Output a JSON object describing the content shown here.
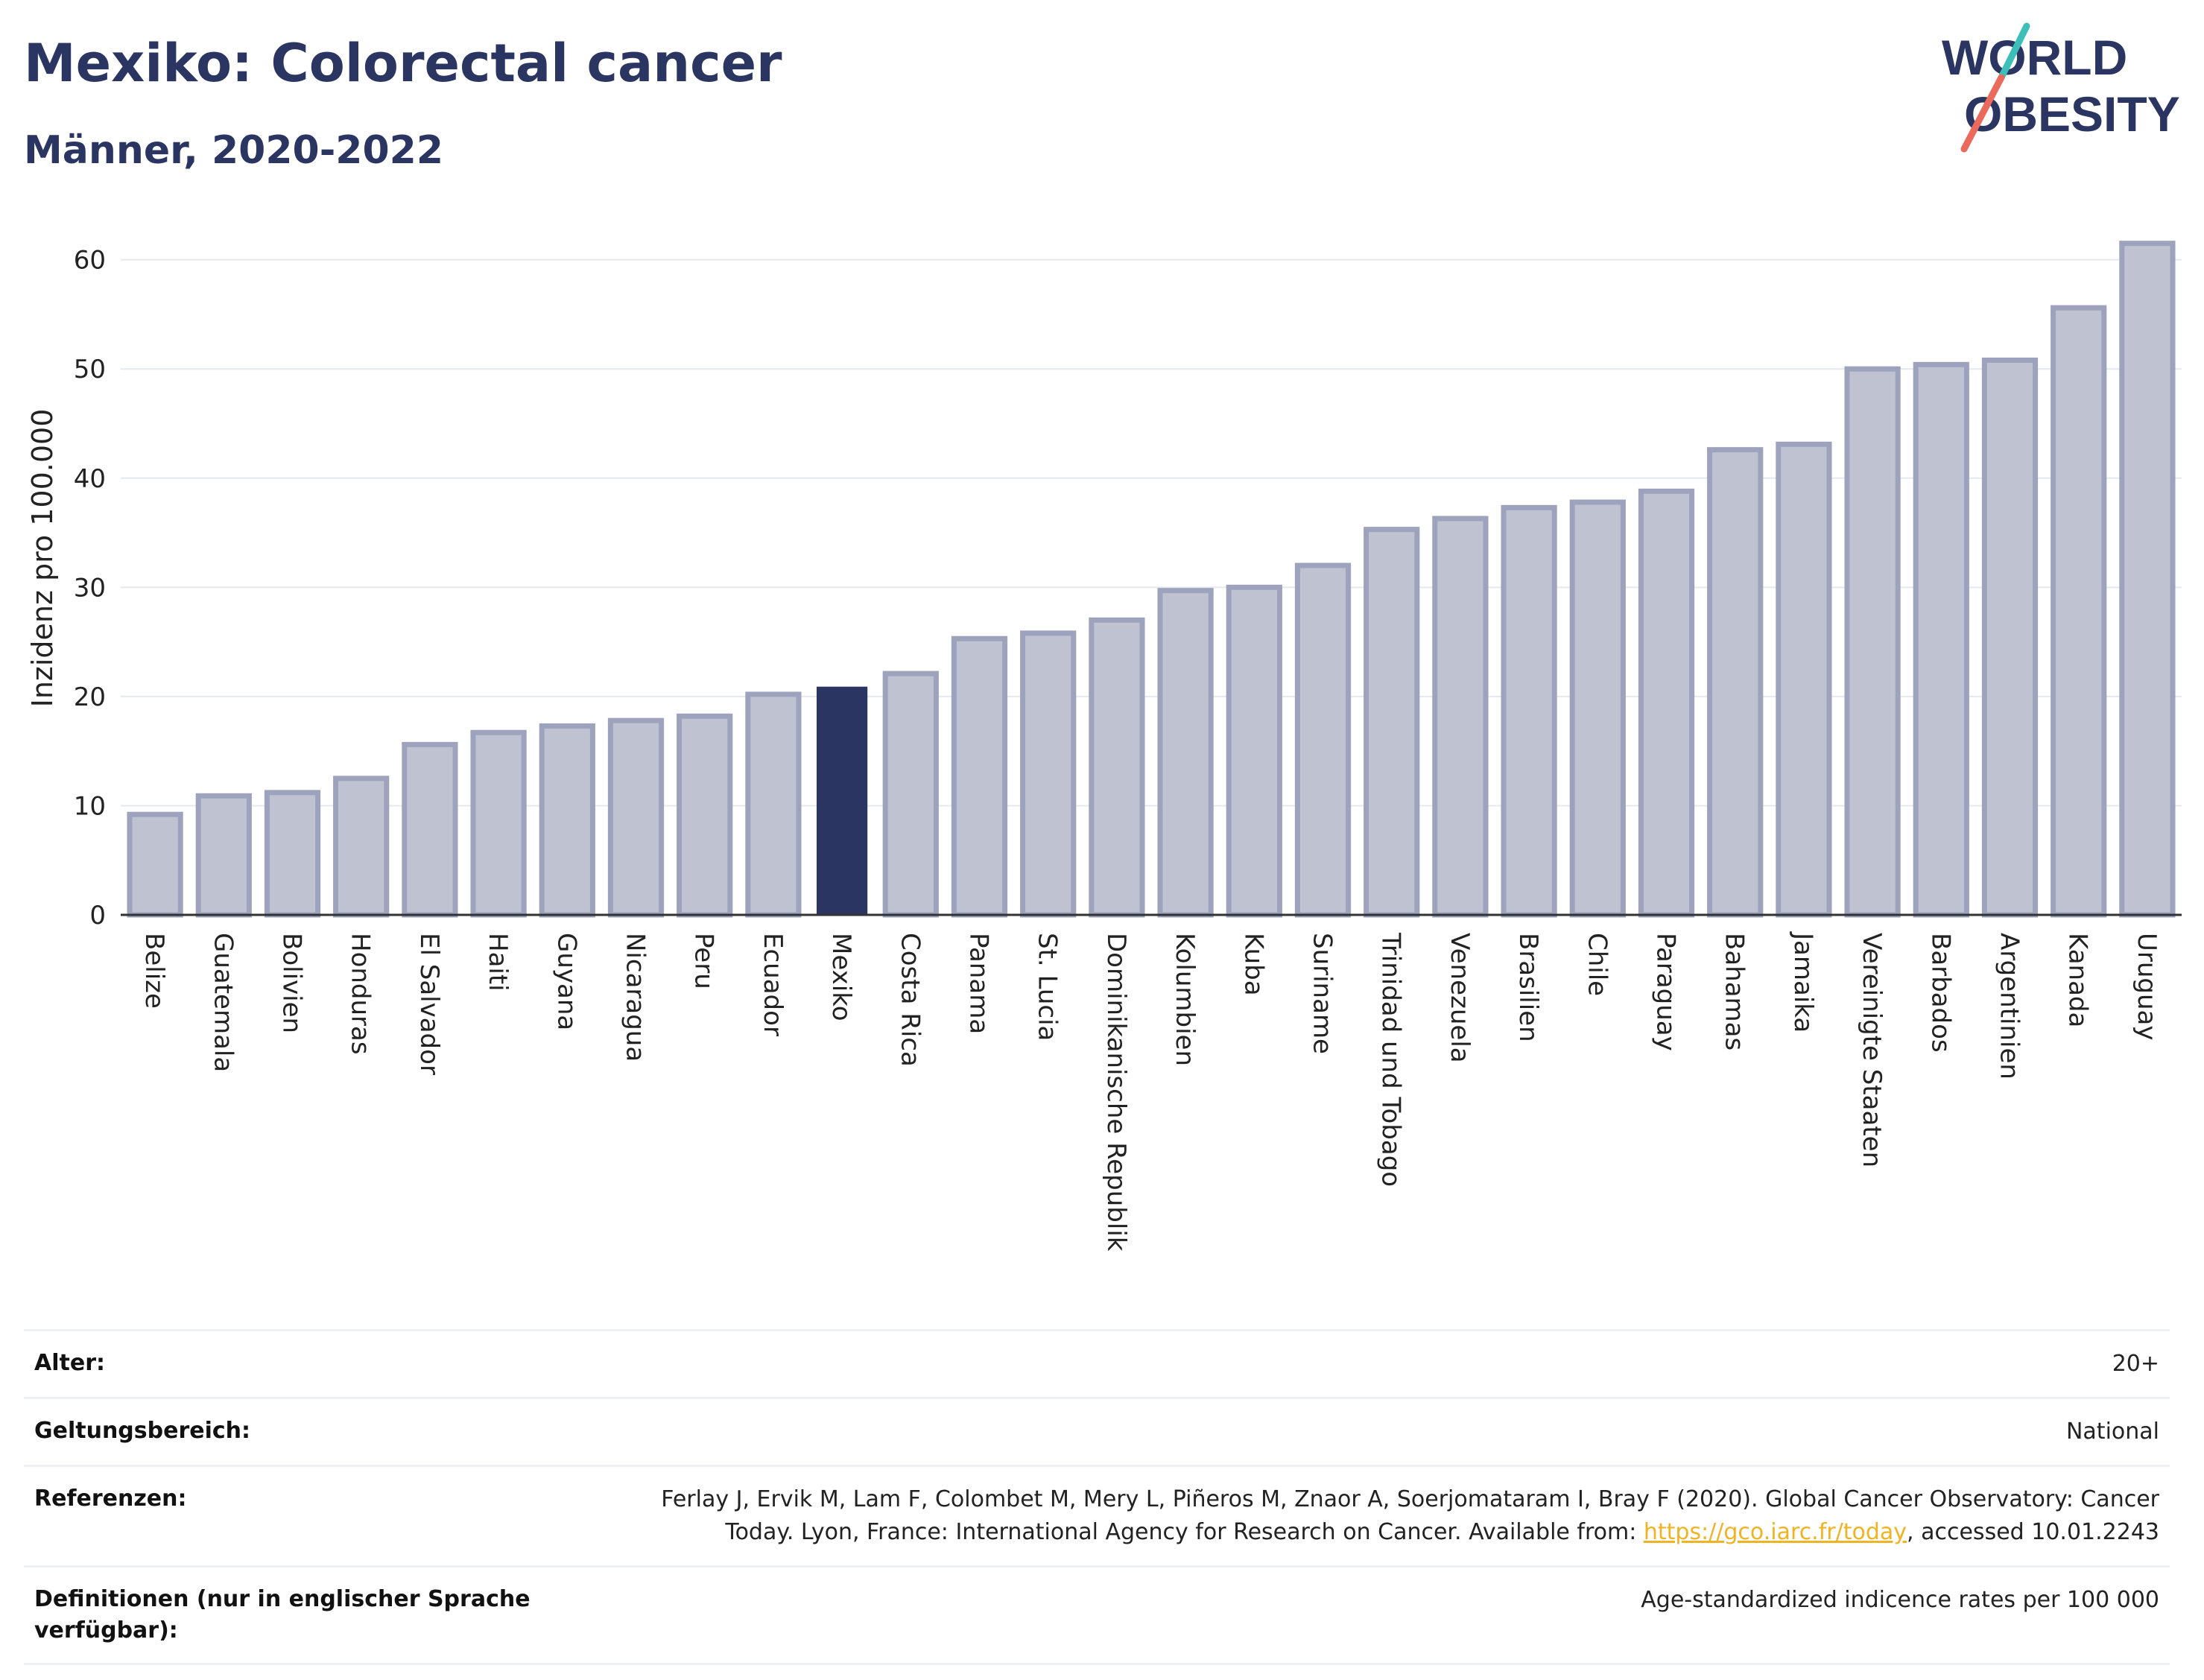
{
  "header": {
    "title": "Mexiko: Colorectal cancer",
    "subtitle": "Männer, 2020-2022"
  },
  "logo": {
    "line1": "WORLD",
    "line2": "OBESITY"
  },
  "colors": {
    "highlight": "#2b3562",
    "bar_fill": "#bfc3d1",
    "bar_stroke": "#9da3bd",
    "logo_teal": "#3bbfb8",
    "logo_red": "#ea6a5c"
  },
  "chart_data": {
    "type": "bar",
    "ylabel": "Inzidenz pro 100.000",
    "xlabel": "",
    "ylim": [
      0,
      64
    ],
    "yticks": [
      0,
      10,
      20,
      30,
      40,
      50,
      60
    ],
    "grid": true,
    "highlight": "Mexiko",
    "categories": [
      "Belize",
      "Guatemala",
      "Bolivien",
      "Honduras",
      "El Salvador",
      "Haiti",
      "Guyana",
      "Nicaragua",
      "Peru",
      "Ecuador",
      "Mexiko",
      "Costa Rica",
      "Panama",
      "St. Lucia",
      "Dominikanische Republik",
      "Kolumbien",
      "Kuba",
      "Suriname",
      "Trinidad und Tobago",
      "Venezuela",
      "Brasilien",
      "Chile",
      "Paraguay",
      "Bahamas",
      "Jamaika",
      "Vereinigte Staaten",
      "Barbados",
      "Argentinien",
      "Kanada",
      "Uruguay"
    ],
    "values": [
      9.2,
      10.9,
      11.2,
      12.5,
      15.6,
      16.7,
      17.3,
      17.8,
      18.2,
      20.2,
      20.9,
      22.1,
      25.3,
      25.8,
      27.0,
      29.7,
      30.0,
      32.0,
      35.3,
      36.3,
      37.3,
      37.8,
      38.8,
      42.6,
      43.1,
      50.0,
      50.4,
      50.8,
      55.6,
      61.5
    ]
  },
  "meta": {
    "rows": [
      {
        "key": "Alter:",
        "value": "20+"
      },
      {
        "key": "Geltungsbereich:",
        "value": "National"
      }
    ],
    "references": {
      "key": "Referenzen:",
      "text_before": "Ferlay J, Ervik M, Lam F, Colombet M, Mery L, Piñeros M, Znaor A, Soerjomataram I, Bray F (2020). Global Cancer Observatory: Cancer Today. Lyon, France: International Agency for Research on Cancer. Available from: ",
      "link": "https://gco.iarc.fr/today",
      "text_after": ", accessed 10.01.2243"
    },
    "definitions": {
      "key": "Definitionen (nur in englischer Sprache verfügbar):",
      "value": "Age-standardized indicence rates per 100 000"
    }
  }
}
